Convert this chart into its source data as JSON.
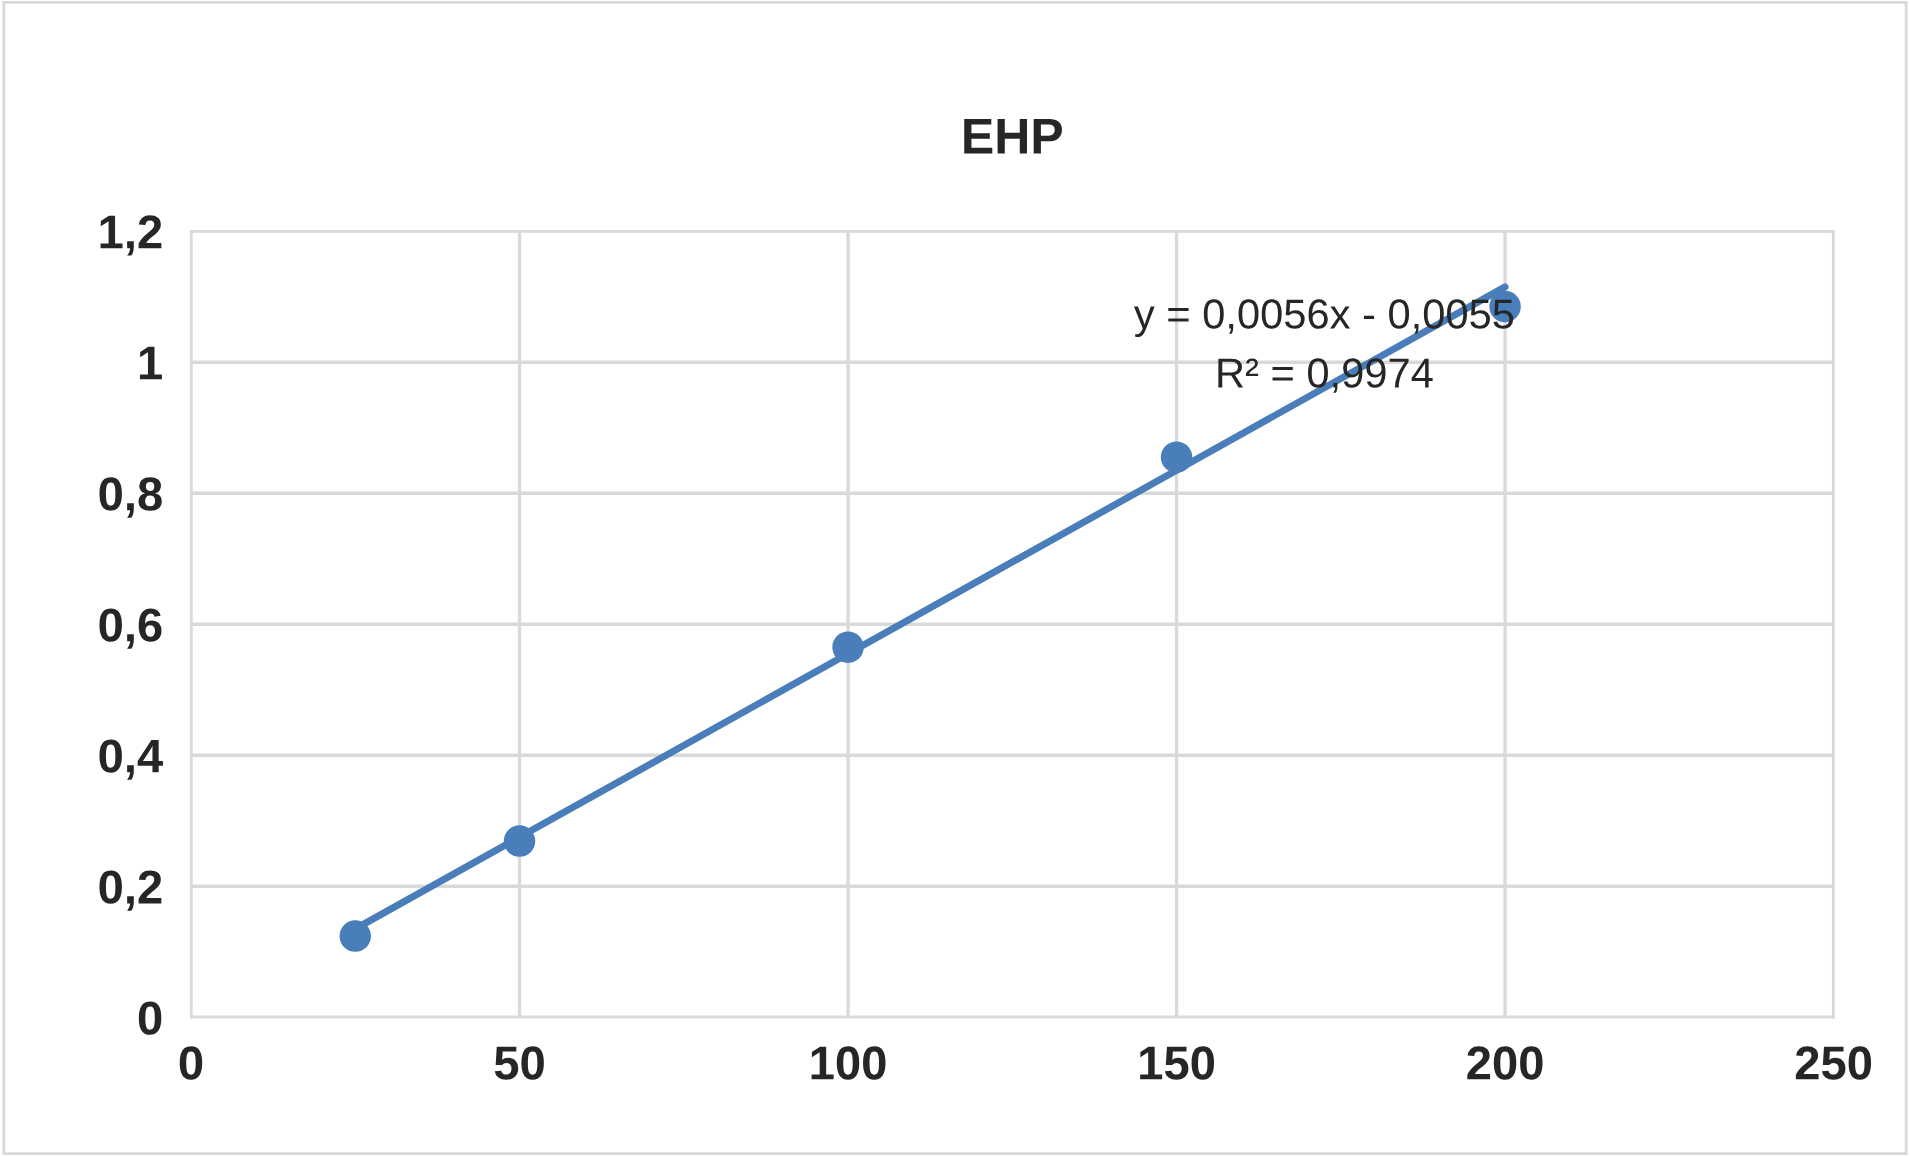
{
  "chart_data": {
    "type": "scatter",
    "title": "EHP",
    "series": [
      {
        "color": "#4a7ebb",
        "x": [
          25,
          50,
          100,
          150,
          200
        ],
        "values": [
          0.124,
          0.269,
          0.565,
          0.855,
          1.085
        ],
        "marker": "circle"
      },
      {
        "type": "line",
        "color": "#4a7ebb",
        "x": [
          25,
          200
        ],
        "values": [
          0.135,
          1.115
        ],
        "marker": "none",
        "line_style": "solid"
      }
    ],
    "xlim": [
      0,
      250
    ],
    "xticks": [
      0,
      50,
      100,
      150,
      200,
      250
    ],
    "ylim": [
      0,
      1.2
    ],
    "yticks": [
      0,
      {
        "value": 0.2,
        "label": "0,2"
      },
      {
        "value": 0.4,
        "label": "0,4"
      },
      {
        "value": 0.6,
        "label": "0,6"
      },
      {
        "value": 0.8,
        "label": "0,8"
      },
      1,
      {
        "value": 1.2,
        "label": "1,2"
      }
    ],
    "grid": true,
    "legend": false,
    "annotations": [
      "y = 0,0056x - 0,0055",
      "R² = 0,9974"
    ]
  }
}
